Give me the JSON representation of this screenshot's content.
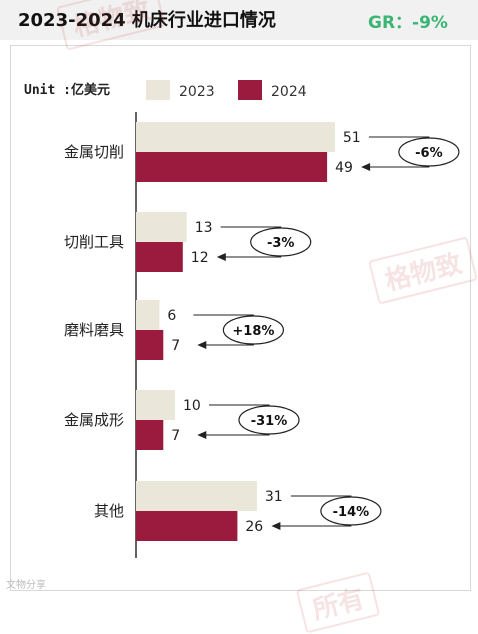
{
  "header": {
    "title": "2023-2024  机床行业进口情况",
    "growth_text": "GR：-9%"
  },
  "watermark_texts": [
    "格物致",
    "格物致",
    "所有"
  ],
  "credit_text": "文物分享",
  "chart_data": {
    "type": "bar",
    "orientation": "horizontal",
    "unit_label": "Unit :亿美元",
    "categories": [
      "金属切削",
      "切削工具",
      "磨料磨具",
      "金属成形",
      "其他"
    ],
    "series": [
      {
        "name": "2023",
        "values": [
          51,
          13,
          6,
          10,
          31
        ],
        "color": "#ebe6da"
      },
      {
        "name": "2024",
        "values": [
          49,
          12,
          7,
          7,
          26
        ],
        "color": "#9b1b3f"
      }
    ],
    "changes": [
      "-6%",
      "-3%",
      "+18%",
      "-31%",
      "-14%"
    ],
    "xlim": [
      0,
      60
    ],
    "grid": false,
    "legend": "top"
  }
}
